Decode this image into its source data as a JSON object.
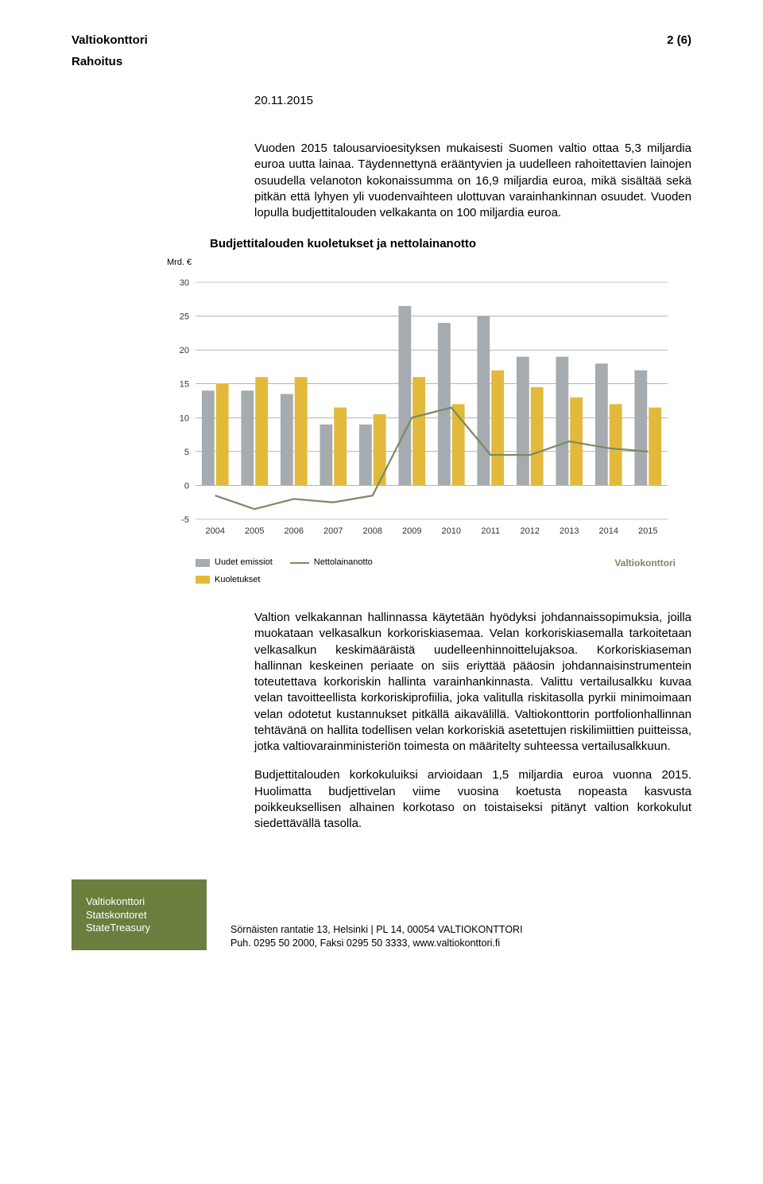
{
  "header": {
    "left_top": "Valtiokonttori",
    "left_sub": "Rahoitus",
    "right": "2 (6)"
  },
  "date": "20.11.2015",
  "para1": "Vuoden 2015 talousarvioesityksen mukaisesti Suomen valtio ottaa 5,3 miljardia euroa uutta lainaa. Täydennettynä erääntyvien ja uudelleen rahoitettavien lainojen osuudella velanoton kokonaissumma on 16,9 miljardia euroa, mikä sisältää sekä pitkän että lyhyen yli vuodenvaihteen ulottuvan varainhankinnan osuudet. Vuoden lopulla budjettitalouden velkakanta on 100 miljardia euroa.",
  "para2": "Valtion velkakannan hallinnassa käytetään hyödyksi johdannaissopimuksia, joilla muokataan velkasalkun korkoriskiasemaa. Velan korkoriskiasemalla tarkoitetaan velkasalkun keskimääräistä uudelleenhinnoittelujaksoa. Korkoriskiaseman hallinnan keskeinen periaate on siis eriyttää pääosin johdannaisinstrumentein toteutettava korkoriskin hallinta varainhankinnasta. Valittu vertailusalkku kuvaa velan tavoitteellista korkoriskiprofiilia, joka valitulla riskitasolla pyrkii minimoimaan velan odotetut kustannukset pitkällä aikavälillä. Valtiokonttorin portfolionhallinnan tehtävänä on hallita todellisen velan korkoriskiä asetettujen riskilimiittien puitteissa, jotka valtiovarainministeriön toimesta on määritelty suhteessa vertailusalkkuun.",
  "para3": "Budjettitalouden korkokuluiksi arvioidaan 1,5 miljardia euroa vuonna 2015. Huolimatta budjettivelan viime vuosina koetusta nopeasta kasvusta poikkeuksellisen alhainen korkotaso on toistaiseksi pitänyt valtion korkokulut siedettävällä tasolla.",
  "chart": {
    "title": "Budjettitalouden kuoletukset ja nettolainanotto",
    "ylabel": "Mrd. €",
    "type": "bar-line",
    "categories": [
      "2004",
      "2005",
      "2006",
      "2007",
      "2008",
      "2009",
      "2010",
      "2011",
      "2012",
      "2013",
      "2014",
      "2015"
    ],
    "uudet": [
      14,
      14,
      13.5,
      9,
      9,
      26.5,
      24,
      25,
      19,
      19,
      18,
      17
    ],
    "kuoletukset": [
      15,
      16,
      16,
      11.5,
      10.5,
      16,
      12,
      17,
      14.5,
      13,
      12,
      11.5
    ],
    "nettolainanotto": [
      -1.5,
      -3.5,
      -2,
      -2.5,
      -1.5,
      10,
      11.5,
      4.5,
      4.5,
      6.5,
      5.5,
      5
    ],
    "colors": {
      "uudet": "#a5abaf",
      "kuoletukset": "#e2b93a",
      "line": "#7a8a61",
      "grid": "#888888",
      "bg": "#ffffff"
    },
    "ylim": [
      -5,
      30
    ],
    "yticks": [
      -5,
      0,
      5,
      10,
      15,
      20,
      25,
      30
    ],
    "legend_uudet": "Uudet emissiot",
    "legend_kuoletukset": "Kuoletukset",
    "legend_line": "Nettolainanotto",
    "source": "Valtiokonttori"
  },
  "footer": {
    "logo_line1": "Valtiokonttori",
    "logo_line2": "Statskontoret",
    "logo_line3": "StateTreasury",
    "addr_line1": "Sörnäisten rantatie 13, Helsinki  |  PL 14, 00054 VALTIOKONTTORI",
    "addr_line2": "Puh. 0295 50 2000, Faksi 0295 50 3333, www.valtiokonttori.fi"
  }
}
